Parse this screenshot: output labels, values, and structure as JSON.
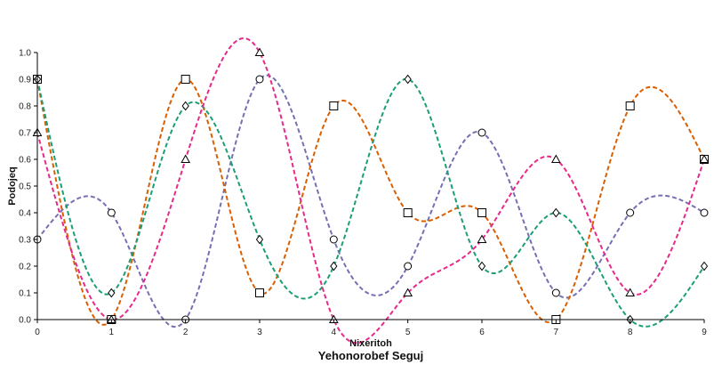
{
  "chart_data": {
    "type": "line",
    "title": "Yehonorobef Seguj",
    "xlabel": "Nixeritoh",
    "ylabel": "Podojeq",
    "x": [
      0,
      1,
      2,
      3,
      4,
      5,
      6,
      7,
      8,
      9
    ],
    "xlim": [
      0,
      9
    ],
    "ylim": [
      0,
      1
    ],
    "x_ticks": [
      "0",
      "1",
      "2",
      "3",
      "4",
      "5",
      "6",
      "7",
      "8",
      "9"
    ],
    "y_ticks": [
      "0.0",
      "0.1",
      "0.2",
      "0.3",
      "0.4",
      "0.5",
      "0.6",
      "0.7",
      "0.8",
      "0.9",
      "1.0"
    ],
    "grid": false,
    "legend": "none",
    "series": [
      {
        "marker": "circle",
        "color": "#7570b3",
        "values": [
          0.3,
          0.4,
          0.0,
          0.9,
          0.3,
          0.2,
          0.7,
          0.1,
          0.4,
          0.4
        ]
      },
      {
        "marker": "square",
        "color": "#d95f02",
        "values": [
          0.9,
          0.0,
          0.9,
          0.1,
          0.8,
          0.4,
          0.4,
          0.0,
          0.8,
          0.6
        ]
      },
      {
        "marker": "diamond",
        "color": "#1b9e77",
        "values": [
          0.9,
          0.1,
          0.8,
          0.3,
          0.2,
          0.9,
          0.2,
          0.4,
          0.0,
          0.2
        ]
      },
      {
        "marker": "triangle",
        "color": "#e7298a",
        "values": [
          0.7,
          0.0,
          0.6,
          1.0,
          0.0,
          0.1,
          0.3,
          0.6,
          0.1,
          0.6
        ]
      }
    ]
  }
}
